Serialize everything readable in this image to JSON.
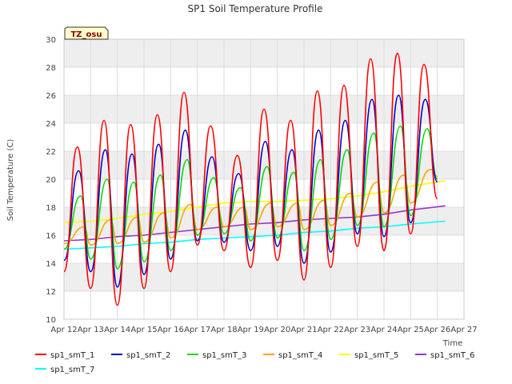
{
  "chart_data": {
    "type": "line",
    "title": "SP1 Soil Temperature Profile",
    "xlabel": "Time",
    "ylabel": "Soil Temperature (C)",
    "badge": "TZ_osu",
    "ylim": [
      10,
      30
    ],
    "xlim": [
      0,
      15
    ],
    "yticks": [
      10,
      12,
      14,
      16,
      18,
      20,
      22,
      24,
      26,
      28,
      30
    ],
    "xticks": [
      "Apr 12",
      "Apr 13",
      "Apr 14",
      "Apr 15",
      "Apr 16",
      "Apr 17",
      "Apr 18",
      "Apr 19",
      "Apr 20",
      "Apr 21",
      "Apr 22",
      "Apr 23",
      "Apr 24",
      "Apr 25",
      "Apr 26",
      "Apr 27"
    ],
    "series": [
      {
        "name": "sp1_smT_1",
        "color": "#ff0000",
        "offset": 0.5,
        "mins": [
          13.4,
          12.2,
          11.0,
          12.2,
          13.4,
          15.3,
          14.9,
          13.7,
          14.2,
          12.8,
          13.7,
          15.2,
          14.9,
          16.1,
          18.6
        ],
        "maxs": [
          22.3,
          24.2,
          23.9,
          24.6,
          26.2,
          23.8,
          21.7,
          25.0,
          24.2,
          26.3,
          26.7,
          28.6,
          29.0,
          28.2
        ]
      },
      {
        "name": "sp1_smT_2",
        "color": "#0000cc",
        "offset": 0.55,
        "mins": [
          14.2,
          13.4,
          12.3,
          13.2,
          14.3,
          15.6,
          15.5,
          14.9,
          15.2,
          14.0,
          14.8,
          16.1,
          15.9,
          16.9,
          19.8
        ],
        "maxs": [
          20.6,
          22.1,
          21.8,
          22.5,
          23.5,
          21.6,
          20.4,
          22.7,
          22.1,
          23.5,
          24.2,
          25.7,
          26.0,
          25.7
        ]
      },
      {
        "name": "sp1_smT_3",
        "color": "#00dd00",
        "offset": 0.62,
        "mins": [
          15.0,
          14.3,
          13.6,
          14.1,
          14.9,
          16.0,
          16.1,
          15.6,
          15.8,
          14.9,
          15.7,
          16.7,
          16.6,
          17.4,
          20.0
        ],
        "maxs": [
          18.8,
          20.0,
          19.8,
          20.3,
          21.4,
          20.1,
          19.4,
          20.9,
          20.5,
          21.4,
          22.1,
          23.3,
          23.8,
          23.6
        ]
      },
      {
        "name": "sp1_smT_4",
        "color": "#ffa500",
        "offset": 0.75,
        "mins": [
          15.4,
          15.3,
          15.4,
          15.5,
          15.8,
          16.4,
          16.6,
          16.4,
          16.6,
          16.4,
          16.7,
          17.3,
          17.6,
          18.3,
          20.2
        ],
        "maxs": [
          16.6,
          17.1,
          17.3,
          17.6,
          18.2,
          18.0,
          18.0,
          18.3,
          18.3,
          18.5,
          19.0,
          19.8,
          20.3,
          20.7
        ]
      },
      {
        "name": "sp1_smT_5",
        "color": "#ffff00",
        "linear": true,
        "points": [
          [
            0,
            16.9
          ],
          [
            1,
            17.0
          ],
          [
            2,
            17.2
          ],
          [
            3,
            17.5
          ],
          [
            4,
            17.7
          ],
          [
            5,
            18.0
          ],
          [
            6,
            18.3
          ],
          [
            7,
            18.4
          ],
          [
            8,
            18.4
          ],
          [
            9,
            18.5
          ],
          [
            10,
            18.6
          ],
          [
            11,
            18.8
          ],
          [
            12,
            19.1
          ],
          [
            13,
            19.5
          ],
          [
            14.3,
            19.9
          ]
        ]
      },
      {
        "name": "sp1_smT_6",
        "color": "#9933cc",
        "linear": true,
        "points": [
          [
            0,
            15.6
          ],
          [
            1,
            15.7
          ],
          [
            2,
            15.9
          ],
          [
            3,
            16.0
          ],
          [
            4,
            16.2
          ],
          [
            5,
            16.4
          ],
          [
            6,
            16.6
          ],
          [
            7,
            16.8
          ],
          [
            8,
            16.9
          ],
          [
            9,
            17.1
          ],
          [
            10,
            17.2
          ],
          [
            11,
            17.3
          ],
          [
            12,
            17.5
          ],
          [
            13,
            17.8
          ],
          [
            14.3,
            18.1
          ]
        ]
      },
      {
        "name": "sp1_smT_7",
        "color": "#00ffff",
        "linear": true,
        "points": [
          [
            0,
            15.0
          ],
          [
            1,
            15.1
          ],
          [
            2,
            15.2
          ],
          [
            3,
            15.4
          ],
          [
            4,
            15.5
          ],
          [
            5,
            15.7
          ],
          [
            6,
            15.8
          ],
          [
            7,
            15.9
          ],
          [
            8,
            16.0
          ],
          [
            9,
            16.2
          ],
          [
            10,
            16.3
          ],
          [
            11,
            16.5
          ],
          [
            12,
            16.6
          ],
          [
            13,
            16.8
          ],
          [
            14.3,
            17.0
          ]
        ]
      }
    ]
  }
}
